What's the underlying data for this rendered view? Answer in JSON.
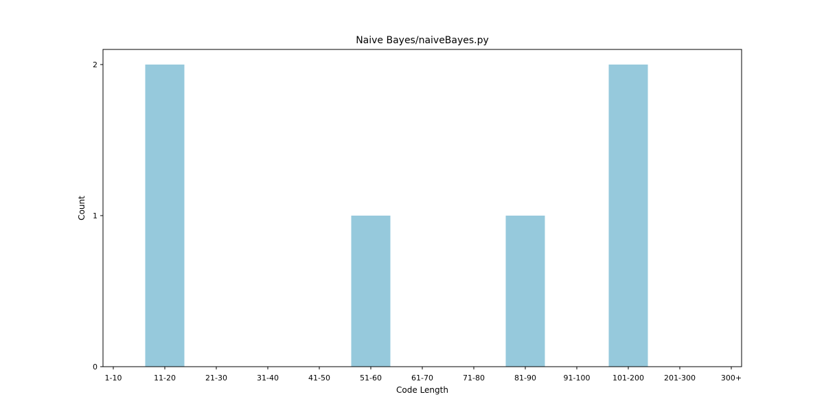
{
  "chart_data": {
    "type": "bar",
    "title": "Naive Bayes/naiveBayes.py",
    "xlabel": "Code Length",
    "ylabel": "Count",
    "categories": [
      "1-10",
      "11-20",
      "21-30",
      "31-40",
      "41-50",
      "51-60",
      "61-70",
      "71-80",
      "81-90",
      "91-100",
      "101-200",
      "201-300",
      "300+"
    ],
    "values": [
      0,
      2,
      0,
      0,
      0,
      1,
      0,
      0,
      1,
      0,
      2,
      0,
      0
    ],
    "yticks": [
      0,
      1,
      2
    ],
    "ylim": [
      0,
      2.1
    ],
    "grid": false,
    "bar_color": "#96c9dc"
  }
}
